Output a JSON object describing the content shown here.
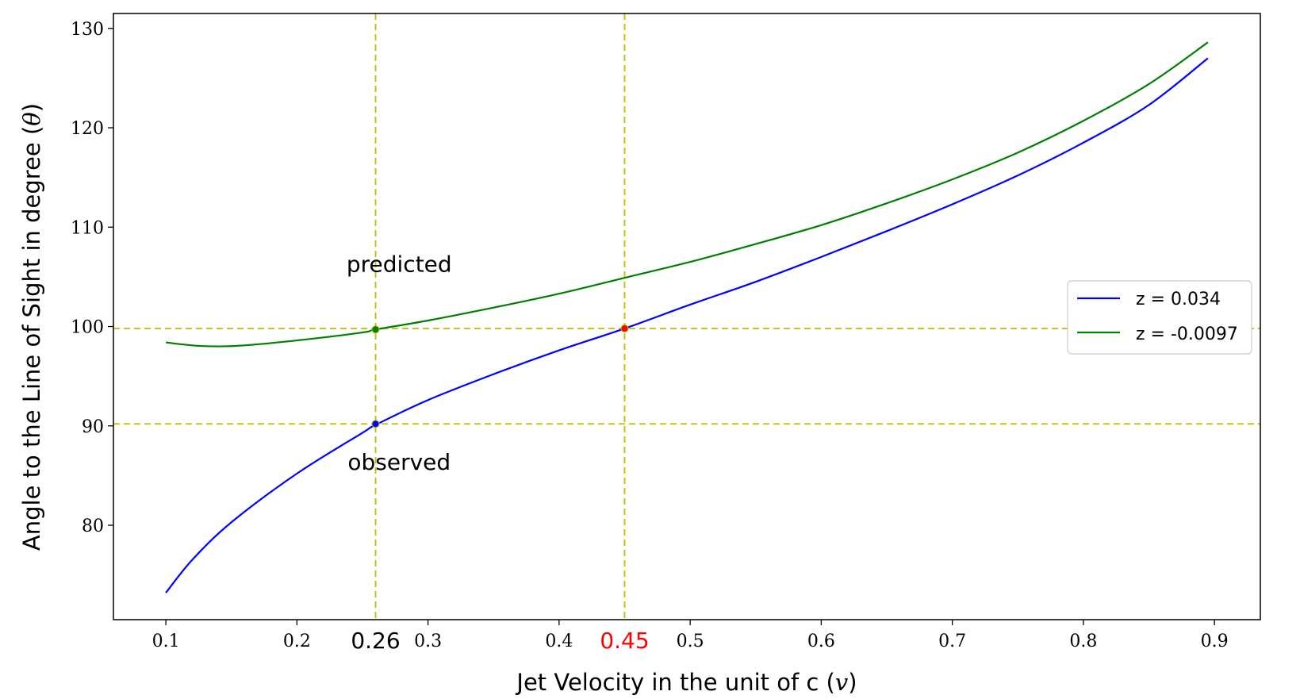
{
  "chart_data": {
    "type": "line",
    "title": "",
    "xlabel": "Jet Velocity in the unit of c (",
    "xlabel_symbol": "v",
    "xlabel_close": ")",
    "ylabel": "Angle to the Line of Sight in degree (",
    "ylabel_symbol": "θ",
    "ylabel_close": ")",
    "xlim": [
      0.06,
      0.935
    ],
    "ylim": [
      70.5,
      131.5
    ],
    "x_ticks": [
      0.1,
      0.2,
      0.3,
      0.4,
      0.5,
      0.6,
      0.7,
      0.8,
      0.9
    ],
    "x_tick_labels": [
      "0.1",
      "0.2",
      "0.3",
      "0.4",
      "0.5",
      "0.6",
      "0.7",
      "0.8",
      "0.9"
    ],
    "y_ticks": [
      80,
      90,
      100,
      110,
      120,
      130
    ],
    "y_tick_labels": [
      "80",
      "90",
      "100",
      "110",
      "120",
      "130"
    ],
    "grid": false,
    "legend_position": "center-right",
    "series": [
      {
        "name": "z = 0.034",
        "color": "#0000ff",
        "x": [
          0.1,
          0.12,
          0.15,
          0.2,
          0.25,
          0.26,
          0.3,
          0.35,
          0.4,
          0.45,
          0.5,
          0.55,
          0.6,
          0.65,
          0.7,
          0.75,
          0.8,
          0.85,
          0.895
        ],
        "y": [
          73.2,
          76.5,
          80.3,
          85.2,
          89.3,
          90.1,
          92.6,
          95.2,
          97.6,
          99.8,
          102.2,
          104.5,
          107.0,
          109.6,
          112.3,
          115.2,
          118.5,
          122.3,
          127.0
        ]
      },
      {
        "name": "z = -0.0097",
        "color": "#008000",
        "x": [
          0.1,
          0.12,
          0.14,
          0.16,
          0.2,
          0.25,
          0.26,
          0.3,
          0.35,
          0.4,
          0.45,
          0.5,
          0.55,
          0.6,
          0.65,
          0.7,
          0.75,
          0.8,
          0.85,
          0.895
        ],
        "y": [
          98.4,
          98.1,
          98.0,
          98.1,
          98.6,
          99.4,
          99.7,
          100.6,
          101.9,
          103.3,
          104.9,
          106.5,
          108.3,
          110.2,
          112.4,
          114.8,
          117.5,
          120.7,
          124.4,
          128.6
        ]
      }
    ],
    "reference_lines": {
      "color": "#bfbf00",
      "vertical_x": [
        0.26,
        0.45
      ],
      "horizontal_y": [
        90.2,
        99.8
      ]
    },
    "markers": [
      {
        "x": 0.26,
        "y": 99.7,
        "color": "#008000"
      },
      {
        "x": 0.26,
        "y": 90.2,
        "color": "#0000ff"
      },
      {
        "x": 0.45,
        "y": 99.8,
        "color": "#ff0000"
      }
    ],
    "special_x_labels": [
      {
        "x": 0.26,
        "text": "0.26",
        "color": "#000000"
      },
      {
        "x": 0.45,
        "text": "0.45",
        "color": "#ff0000"
      }
    ],
    "annotations": [
      {
        "text": "predicted",
        "x": 0.278,
        "y": 105.5
      },
      {
        "text": "observed",
        "x": 0.278,
        "y": 85.6
      }
    ]
  }
}
